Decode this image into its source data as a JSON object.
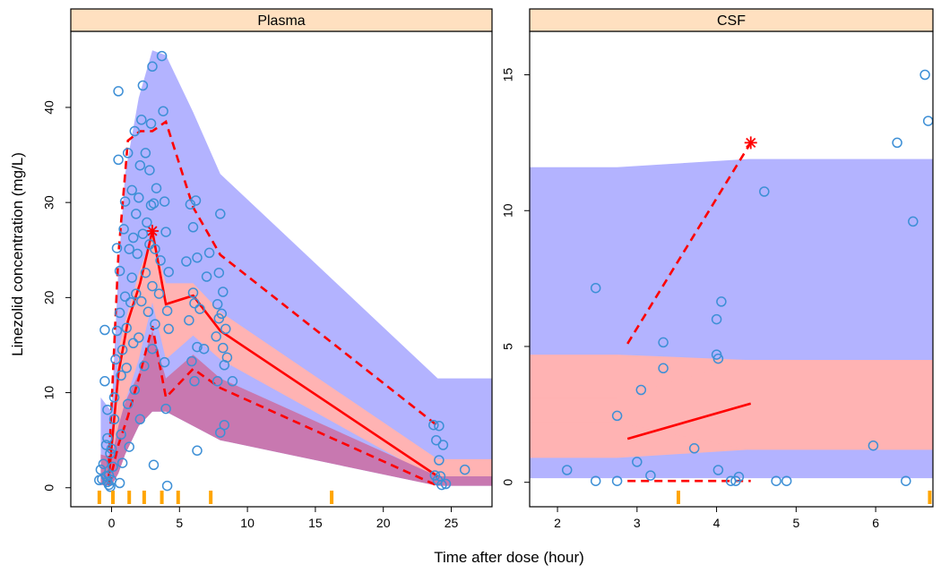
{
  "colors": {
    "pi_outer": "#b3b3ff",
    "pi_median": "#ffb3b3",
    "overlap": "#c878b0",
    "observed_points": "#3d8fd6",
    "observed_lines": "#ff0000",
    "rug": "#ffa500",
    "strip_bg": "#ffe0c0"
  },
  "chart_data": {
    "type": "scatter",
    "xlabel": "Time after dose (hour)",
    "ylabel": "Linezolid concentration (mg/L)",
    "legend": "none",
    "panels": [
      {
        "title": "Plasma",
        "xlim": [
          -3,
          28
        ],
        "ylim": [
          -2,
          48
        ],
        "xticks": [
          0,
          5,
          10,
          15,
          20,
          25
        ],
        "yticks": [
          0,
          10,
          20,
          30,
          40
        ],
        "outer_band": {
          "x": [
            -0.8,
            0,
            0.5,
            1,
            2,
            3,
            4,
            6,
            8,
            24,
            28
          ],
          "upper": [
            9.5,
            8,
            23,
            33,
            41,
            46,
            45.5,
            39.5,
            33,
            11.5,
            11.5
          ],
          "lower": [
            0.3,
            0.2,
            1.5,
            3.5,
            6.5,
            8,
            8,
            6.5,
            5,
            0.2,
            0.2
          ]
        },
        "median_band": {
          "x": [
            -0.8,
            0,
            0.5,
            1,
            2,
            3,
            4,
            6,
            8,
            24,
            28
          ],
          "upper": [
            0,
            0,
            14.5,
            17.5,
            22.5,
            26.5,
            21.5,
            21.5,
            18.5,
            3,
            3
          ],
          "lower": [
            0,
            0,
            6.5,
            9,
            13.5,
            19.5,
            13.5,
            16,
            13.5,
            0.8,
            0.8
          ]
        },
        "outer_lower_band": {
          "x": [
            -0.8,
            0,
            0.5,
            1,
            2,
            3,
            4,
            6,
            8,
            24,
            28
          ],
          "upper": [
            3.5,
            3.2,
            6.5,
            9,
            12,
            16.5,
            11.5,
            14,
            11.5,
            1.2,
            1.2
          ],
          "lower": [
            0.3,
            0.2,
            1.5,
            3.5,
            6.5,
            8,
            8,
            6.5,
            5,
            0.2,
            0.2
          ]
        },
        "observed_median": {
          "x": [
            -0.2,
            0.5,
            1.2,
            2.1,
            3,
            4,
            6,
            8,
            24
          ],
          "y": [
            1.2,
            12,
            17.5,
            21.5,
            27,
            19.3,
            20.2,
            16.5,
            1.2
          ]
        },
        "observed_upper": {
          "x": [
            -0.2,
            0.5,
            1.2,
            2.1,
            3,
            4,
            6,
            8,
            24
          ],
          "y": [
            2.5,
            24.5,
            36.5,
            37.5,
            37.5,
            38.5,
            29.5,
            24.5,
            6.5
          ]
        },
        "observed_lower": {
          "x": [
            -0.2,
            0.5,
            1.2,
            2.1,
            3,
            4,
            6,
            8,
            24
          ],
          "y": [
            0.3,
            4.5,
            7.5,
            12,
            17,
            9.5,
            12.5,
            10.5,
            0.2
          ]
        },
        "outside_markers": [
          {
            "x": 3,
            "y": 27
          }
        ],
        "rug_x": [
          -0.9,
          0.1,
          1.3,
          2.4,
          3.7,
          4.9,
          7.3,
          16.2
        ],
        "points": [
          [
            -0.9,
            0.8
          ],
          [
            -0.8,
            1.9
          ],
          [
            -0.7,
            0.9
          ],
          [
            -0.6,
            2.5
          ],
          [
            -0.5,
            11.2
          ],
          [
            -0.5,
            16.6
          ],
          [
            -0.4,
            4.5
          ],
          [
            -0.4,
            1.2
          ],
          [
            -0.3,
            0.6
          ],
          [
            -0.3,
            8.2
          ],
          [
            -0.3,
            5.2
          ],
          [
            -0.2,
            0.3
          ],
          [
            -0.2,
            1.3
          ],
          [
            -0.1,
            0.1
          ],
          [
            -0.1,
            3.6
          ],
          [
            0.0,
            0.8
          ],
          [
            0.0,
            4.1
          ],
          [
            0.1,
            2.2
          ],
          [
            0.2,
            9.5
          ],
          [
            0.2,
            7.2
          ],
          [
            0.3,
            13.5
          ],
          [
            0.4,
            16.5
          ],
          [
            0.4,
            25.2
          ],
          [
            0.5,
            41.7
          ],
          [
            0.5,
            34.5
          ],
          [
            0.6,
            22.8
          ],
          [
            0.6,
            18.4
          ],
          [
            0.6,
            0.5
          ],
          [
            0.7,
            11.8
          ],
          [
            0.7,
            5.6
          ],
          [
            0.8,
            2.6
          ],
          [
            0.8,
            14.5
          ],
          [
            0.9,
            27.2
          ],
          [
            1.0,
            30.1
          ],
          [
            1.0,
            20.1
          ],
          [
            1.1,
            16.8
          ],
          [
            1.1,
            12.6
          ],
          [
            1.2,
            35.2
          ],
          [
            1.2,
            8.8
          ],
          [
            1.3,
            25.1
          ],
          [
            1.3,
            4.3
          ],
          [
            1.4,
            19.5
          ],
          [
            1.5,
            22.1
          ],
          [
            1.5,
            31.3
          ],
          [
            1.6,
            15.2
          ],
          [
            1.6,
            26.3
          ],
          [
            1.7,
            10.3
          ],
          [
            1.7,
            37.5
          ],
          [
            1.8,
            28.8
          ],
          [
            1.8,
            20.4
          ],
          [
            1.9,
            24.6
          ],
          [
            2.0,
            15.8
          ],
          [
            2.0,
            30.5
          ],
          [
            2.1,
            33.9
          ],
          [
            2.1,
            7.2
          ],
          [
            2.2,
            38.7
          ],
          [
            2.2,
            19.6
          ],
          [
            2.3,
            42.3
          ],
          [
            2.3,
            26.7
          ],
          [
            2.4,
            12.8
          ],
          [
            2.5,
            35.2
          ],
          [
            2.5,
            22.6
          ],
          [
            2.6,
            27.9
          ],
          [
            2.7,
            18.5
          ],
          [
            2.8,
            25.6
          ],
          [
            2.8,
            33.4
          ],
          [
            2.9,
            29.7
          ],
          [
            2.9,
            38.3
          ],
          [
            3.0,
            21.2
          ],
          [
            3.0,
            14.6
          ],
          [
            3.0,
            44.3
          ],
          [
            3.1,
            29.9
          ],
          [
            3.1,
            2.4
          ],
          [
            3.2,
            17.2
          ],
          [
            3.2,
            25.1
          ],
          [
            3.3,
            31.5
          ],
          [
            3.5,
            20.4
          ],
          [
            3.6,
            23.9
          ],
          [
            3.7,
            45.4
          ],
          [
            3.8,
            39.6
          ],
          [
            3.9,
            30.1
          ],
          [
            3.9,
            13.2
          ],
          [
            4.0,
            8.3
          ],
          [
            4.0,
            26.9
          ],
          [
            4.1,
            18.6
          ],
          [
            4.1,
            0.2
          ],
          [
            4.2,
            22.7
          ],
          [
            4.2,
            16.7
          ],
          [
            5.5,
            23.8
          ],
          [
            5.7,
            17.6
          ],
          [
            5.8,
            29.8
          ],
          [
            5.9,
            13.3
          ],
          [
            6.0,
            27.4
          ],
          [
            6.0,
            20.5
          ],
          [
            6.1,
            19.4
          ],
          [
            6.1,
            11.2
          ],
          [
            6.2,
            30.2
          ],
          [
            6.3,
            24.2
          ],
          [
            6.3,
            14.8
          ],
          [
            6.3,
            3.9
          ],
          [
            6.5,
            18.8
          ],
          [
            6.8,
            14.6
          ],
          [
            7.0,
            22.2
          ],
          [
            7.2,
            24.7
          ],
          [
            7.7,
            15.9
          ],
          [
            7.8,
            19.3
          ],
          [
            7.8,
            11.2
          ],
          [
            7.9,
            22.6
          ],
          [
            7.9,
            17.8
          ],
          [
            8.0,
            5.8
          ],
          [
            8.0,
            28.8
          ],
          [
            8.1,
            18.3
          ],
          [
            8.2,
            20.6
          ],
          [
            8.2,
            14.7
          ],
          [
            8.3,
            6.6
          ],
          [
            8.3,
            12.9
          ],
          [
            8.4,
            16.7
          ],
          [
            8.5,
            13.7
          ],
          [
            8.9,
            11.2
          ],
          [
            23.7,
            6.6
          ],
          [
            23.8,
            1.3
          ],
          [
            23.9,
            5.0
          ],
          [
            24.0,
            0.8
          ],
          [
            24.1,
            2.9
          ],
          [
            24.1,
            6.5
          ],
          [
            24.2,
            1.2
          ],
          [
            24.3,
            0.3
          ],
          [
            24.4,
            4.5
          ],
          [
            24.6,
            0.4
          ],
          [
            26.0,
            1.9
          ]
        ]
      },
      {
        "title": "CSF",
        "xlim": [
          1.65,
          6.72
        ],
        "ylim": [
          -0.9,
          16.6
        ],
        "xticks": [
          2,
          3,
          4,
          5,
          6
        ],
        "yticks": [
          0,
          5,
          10,
          15
        ],
        "outer_band": {
          "x": [
            1.65,
            2.75,
            4.4,
            6.72
          ],
          "upper": [
            11.6,
            11.6,
            11.9,
            11.9
          ],
          "lower": [
            0.15,
            0.15,
            0.15,
            0.15
          ]
        },
        "median_band": {
          "x": [
            1.65,
            2.75,
            4.4,
            6.72
          ],
          "upper": [
            4.7,
            4.7,
            4.5,
            4.5
          ],
          "lower": [
            0.9,
            0.9,
            1.2,
            1.2
          ]
        },
        "inner_median_band": {
          "x": [
            1.65,
            2.75,
            4.4,
            6.72
          ],
          "upper": [
            3.1,
            3.1,
            4.5,
            4.5
          ],
          "lower": [
            2.2,
            2.2,
            1.2,
            1.2
          ]
        },
        "observed_median": {
          "x": [
            2.88,
            4.43
          ],
          "y": [
            1.6,
            2.9
          ]
        },
        "observed_upper": {
          "x": [
            2.88,
            4.43
          ],
          "y": [
            5.1,
            12.5
          ]
        },
        "observed_lower": {
          "x": [
            2.88,
            4.43
          ],
          "y": [
            0.05,
            0.05
          ]
        },
        "outside_markers": [
          {
            "x": 4.43,
            "y": 12.5
          }
        ],
        "rug_x": [
          3.52,
          6.68
        ],
        "points": [
          [
            2.12,
            0.45
          ],
          [
            2.48,
            7.15
          ],
          [
            2.48,
            0.05
          ],
          [
            2.75,
            2.45
          ],
          [
            2.75,
            0.05
          ],
          [
            3.0,
            0.75
          ],
          [
            3.05,
            3.4
          ],
          [
            3.17,
            0.25
          ],
          [
            3.33,
            4.2
          ],
          [
            3.33,
            5.15
          ],
          [
            3.72,
            1.25
          ],
          [
            4.0,
            4.7
          ],
          [
            4.0,
            6.0
          ],
          [
            4.02,
            4.55
          ],
          [
            4.02,
            0.45
          ],
          [
            4.06,
            6.65
          ],
          [
            4.18,
            0.05
          ],
          [
            4.24,
            0.05
          ],
          [
            4.28,
            0.2
          ],
          [
            4.6,
            10.7
          ],
          [
            4.75,
            0.05
          ],
          [
            4.88,
            0.05
          ],
          [
            5.97,
            1.35
          ],
          [
            6.27,
            12.5
          ],
          [
            6.38,
            0.05
          ],
          [
            6.47,
            9.6
          ],
          [
            6.62,
            15.0
          ],
          [
            6.66,
            13.3
          ]
        ]
      }
    ]
  }
}
